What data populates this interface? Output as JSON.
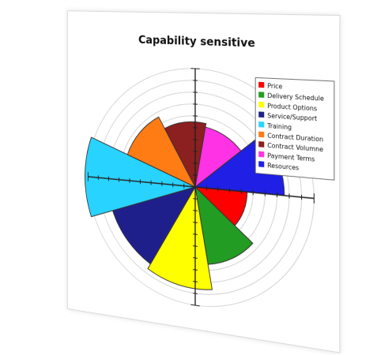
{
  "chart_data": {
    "type": "polar-area",
    "title": "Capability sensitive",
    "scale_max": 10,
    "grid_rings": 10,
    "categories": [
      "Price",
      "Delivery Schedule",
      "Product Options",
      "Service/Support",
      "Training",
      "Contract Duration",
      "Contract Volumne",
      "Payment Terms",
      "Resources"
    ],
    "values": [
      4.5,
      6.5,
      8.6,
      8.1,
      10.3,
      6.6,
      5.5,
      5.2,
      7.6
    ],
    "colors": [
      "#ff0000",
      "#239c23",
      "#ffff00",
      "#1f1f8c",
      "#29d3ff",
      "#ff7c14",
      "#8c1f1f",
      "#ff32e6",
      "#1f1fe6"
    ],
    "legend_position": "top-right",
    "grid": true
  }
}
